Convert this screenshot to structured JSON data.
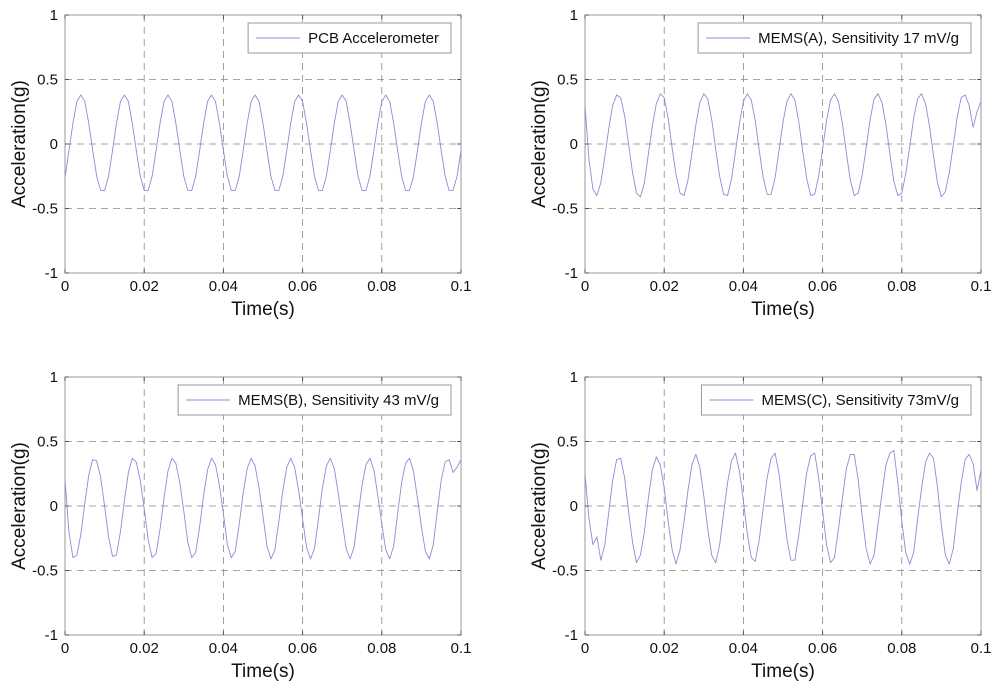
{
  "colors": {
    "series": "#8c8cd8",
    "frame": "#999999",
    "grid": "#888888"
  },
  "chart_data": [
    {
      "type": "line",
      "xlabel": "Time(s)",
      "ylabel": "Acceleration(g)",
      "xlim": [
        0,
        0.1
      ],
      "ylim": [
        -1,
        1
      ],
      "xticks": [
        "0",
        "0.02",
        "0.04",
        "0.06",
        "0.08",
        "0.1"
      ],
      "yticks": [
        "-1",
        "-0.5",
        "0",
        "0.5",
        "1"
      ],
      "grid": true,
      "legend_position": "top-right",
      "series": [
        {
          "name": "PCB Accelerometer",
          "frequency_hz": 100,
          "amplitude_g": 0.38,
          "x": [
            0,
            0.001,
            0.002,
            0.003,
            0.004,
            0.005,
            0.006,
            0.007,
            0.008,
            0.009,
            0.01,
            0.011,
            0.012,
            0.013,
            0.014,
            0.015,
            0.016,
            0.017,
            0.018,
            0.019,
            0.02,
            0.021,
            0.022,
            0.023,
            0.024,
            0.025,
            0.026,
            0.027,
            0.028,
            0.029,
            0.03,
            0.031,
            0.032,
            0.033,
            0.034,
            0.035,
            0.036,
            0.037,
            0.038,
            0.039,
            0.04,
            0.041,
            0.042,
            0.043,
            0.044,
            0.045,
            0.046,
            0.047,
            0.048,
            0.049,
            0.05,
            0.051,
            0.052,
            0.053,
            0.054,
            0.055,
            0.056,
            0.057,
            0.058,
            0.059,
            0.06,
            0.061,
            0.062,
            0.063,
            0.064,
            0.065,
            0.066,
            0.067,
            0.068,
            0.069,
            0.07,
            0.071,
            0.072,
            0.073,
            0.074,
            0.075,
            0.076,
            0.077,
            0.078,
            0.079,
            0.08,
            0.081,
            0.082,
            0.083,
            0.084,
            0.085,
            0.086,
            0.087,
            0.088,
            0.089,
            0.09,
            0.091,
            0.092,
            0.093,
            0.094,
            0.095,
            0.096,
            0.097,
            0.098,
            0.099,
            0.1
          ],
          "y": [
            -0.26,
            -0.05,
            0.16,
            0.33,
            0.38,
            0.33,
            0.16,
            -0.05,
            -0.25,
            -0.36,
            -0.36,
            -0.25,
            -0.05,
            0.16,
            0.33,
            0.38,
            0.33,
            0.16,
            -0.05,
            -0.25,
            -0.36,
            -0.36,
            -0.25,
            -0.05,
            0.16,
            0.33,
            0.38,
            0.33,
            0.16,
            -0.05,
            -0.25,
            -0.36,
            -0.36,
            -0.25,
            -0.05,
            0.16,
            0.33,
            0.38,
            0.33,
            0.16,
            -0.05,
            -0.25,
            -0.36,
            -0.36,
            -0.25,
            -0.05,
            0.16,
            0.33,
            0.38,
            0.33,
            0.16,
            -0.05,
            -0.25,
            -0.36,
            -0.36,
            -0.25,
            -0.05,
            0.16,
            0.33,
            0.38,
            0.33,
            0.16,
            -0.05,
            -0.25,
            -0.36,
            -0.36,
            -0.25,
            -0.05,
            0.16,
            0.33,
            0.38,
            0.33,
            0.16,
            -0.05,
            -0.25,
            -0.36,
            -0.36,
            -0.25,
            -0.05,
            0.16,
            0.33,
            0.38,
            0.33,
            0.16,
            -0.05,
            -0.25,
            -0.36,
            -0.36,
            -0.25,
            -0.05,
            0.16,
            0.33,
            0.38,
            0.33,
            0.16,
            -0.05,
            -0.25,
            -0.36,
            -0.36,
            -0.25,
            -0.05
          ]
        }
      ]
    },
    {
      "type": "line",
      "xlabel": "Time(s)",
      "ylabel": "Acceleration(g)",
      "xlim": [
        0,
        0.1
      ],
      "ylim": [
        -1,
        1
      ],
      "xticks": [
        "0",
        "0.02",
        "0.04",
        "0.06",
        "0.08",
        "0.1"
      ],
      "yticks": [
        "-1",
        "-0.5",
        "0",
        "0.5",
        "1"
      ],
      "grid": true,
      "legend_position": "top-right",
      "series": [
        {
          "name": "MEMS(A), Sensitivity 17 mV/g",
          "frequency_hz": 100,
          "amplitude_g": 0.4,
          "x": [
            0,
            0.001,
            0.002,
            0.003,
            0.004,
            0.005,
            0.006,
            0.007,
            0.008,
            0.009,
            0.01,
            0.011,
            0.012,
            0.013,
            0.014,
            0.015,
            0.016,
            0.017,
            0.018,
            0.019,
            0.02,
            0.021,
            0.022,
            0.023,
            0.024,
            0.025,
            0.026,
            0.027,
            0.028,
            0.029,
            0.03,
            0.031,
            0.032,
            0.033,
            0.034,
            0.035,
            0.036,
            0.037,
            0.038,
            0.039,
            0.04,
            0.041,
            0.042,
            0.043,
            0.044,
            0.045,
            0.046,
            0.047,
            0.048,
            0.049,
            0.05,
            0.051,
            0.052,
            0.053,
            0.054,
            0.055,
            0.056,
            0.057,
            0.058,
            0.059,
            0.06,
            0.061,
            0.062,
            0.063,
            0.064,
            0.065,
            0.066,
            0.067,
            0.068,
            0.069,
            0.07,
            0.071,
            0.072,
            0.073,
            0.074,
            0.075,
            0.076,
            0.077,
            0.078,
            0.079,
            0.08,
            0.081,
            0.082,
            0.083,
            0.084,
            0.085,
            0.086,
            0.087,
            0.088,
            0.089,
            0.09,
            0.091,
            0.092,
            0.093,
            0.094,
            0.095,
            0.096,
            0.097,
            0.098,
            0.099,
            0.1
          ],
          "y": [
            0.3,
            -0.12,
            -0.35,
            -0.4,
            -0.3,
            -0.1,
            0.12,
            0.3,
            0.38,
            0.36,
            0.22,
            0.0,
            -0.22,
            -0.38,
            -0.41,
            -0.3,
            -0.08,
            0.14,
            0.31,
            0.39,
            0.36,
            0.2,
            -0.03,
            -0.24,
            -0.38,
            -0.4,
            -0.28,
            -0.07,
            0.15,
            0.32,
            0.39,
            0.35,
            0.19,
            -0.04,
            -0.25,
            -0.39,
            -0.4,
            -0.27,
            -0.06,
            0.16,
            0.33,
            0.39,
            0.34,
            0.18,
            -0.05,
            -0.26,
            -0.39,
            -0.39,
            -0.26,
            -0.05,
            0.17,
            0.33,
            0.39,
            0.34,
            0.17,
            -0.06,
            -0.27,
            -0.4,
            -0.39,
            -0.25,
            -0.04,
            0.18,
            0.34,
            0.39,
            0.33,
            0.16,
            -0.07,
            -0.28,
            -0.4,
            -0.38,
            -0.24,
            -0.03,
            0.19,
            0.35,
            0.39,
            0.32,
            0.15,
            -0.08,
            -0.29,
            -0.4,
            -0.38,
            -0.23,
            -0.02,
            0.2,
            0.35,
            0.39,
            0.31,
            0.14,
            -0.09,
            -0.3,
            -0.41,
            -0.37,
            -0.22,
            -0.01,
            0.21,
            0.36,
            0.38,
            0.3,
            0.13,
            0.25,
            0.33
          ]
        }
      ]
    },
    {
      "type": "line",
      "xlabel": "Time(s)",
      "ylabel": "Acceleration(g)",
      "xlim": [
        0,
        0.1
      ],
      "ylim": [
        -1,
        1
      ],
      "xticks": [
        "0",
        "0.02",
        "0.04",
        "0.06",
        "0.08",
        "0.1"
      ],
      "yticks": [
        "-1",
        "-0.5",
        "0",
        "0.5",
        "1"
      ],
      "grid": true,
      "legend_position": "top-right",
      "series": [
        {
          "name": "MEMS(B), Sensitivity 43 mV/g",
          "frequency_hz": 100,
          "amplitude_g": 0.38,
          "x": [
            0,
            0.001,
            0.002,
            0.003,
            0.004,
            0.005,
            0.006,
            0.007,
            0.008,
            0.009,
            0.01,
            0.011,
            0.012,
            0.013,
            0.014,
            0.015,
            0.016,
            0.017,
            0.018,
            0.019,
            0.02,
            0.021,
            0.022,
            0.023,
            0.024,
            0.025,
            0.026,
            0.027,
            0.028,
            0.029,
            0.03,
            0.031,
            0.032,
            0.033,
            0.034,
            0.035,
            0.036,
            0.037,
            0.038,
            0.039,
            0.04,
            0.041,
            0.042,
            0.043,
            0.044,
            0.045,
            0.046,
            0.047,
            0.048,
            0.049,
            0.05,
            0.051,
            0.052,
            0.053,
            0.054,
            0.055,
            0.056,
            0.057,
            0.058,
            0.059,
            0.06,
            0.061,
            0.062,
            0.063,
            0.064,
            0.065,
            0.066,
            0.067,
            0.068,
            0.069,
            0.07,
            0.071,
            0.072,
            0.073,
            0.074,
            0.075,
            0.076,
            0.077,
            0.078,
            0.079,
            0.08,
            0.081,
            0.082,
            0.083,
            0.084,
            0.085,
            0.086,
            0.087,
            0.088,
            0.089,
            0.09,
            0.091,
            0.092,
            0.093,
            0.094,
            0.095,
            0.096,
            0.097,
            0.098,
            0.099,
            0.1
          ],
          "y": [
            0.2,
            -0.2,
            -0.4,
            -0.38,
            -0.22,
            0.02,
            0.24,
            0.36,
            0.35,
            0.22,
            0.0,
            -0.24,
            -0.39,
            -0.38,
            -0.2,
            0.04,
            0.26,
            0.37,
            0.34,
            0.2,
            -0.02,
            -0.26,
            -0.4,
            -0.37,
            -0.18,
            0.06,
            0.27,
            0.37,
            0.33,
            0.18,
            -0.04,
            -0.28,
            -0.4,
            -0.36,
            -0.16,
            0.08,
            0.28,
            0.37,
            0.32,
            0.16,
            -0.06,
            -0.3,
            -0.4,
            -0.35,
            -0.14,
            0.1,
            0.29,
            0.37,
            0.31,
            0.14,
            -0.08,
            -0.31,
            -0.41,
            -0.34,
            -0.12,
            0.12,
            0.3,
            0.37,
            0.3,
            0.12,
            -0.1,
            -0.32,
            -0.41,
            -0.33,
            -0.1,
            0.14,
            0.31,
            0.37,
            0.29,
            0.1,
            -0.12,
            -0.33,
            -0.41,
            -0.32,
            -0.08,
            0.16,
            0.32,
            0.37,
            0.28,
            0.08,
            -0.14,
            -0.34,
            -0.41,
            -0.31,
            -0.06,
            0.18,
            0.33,
            0.37,
            0.27,
            0.06,
            -0.16,
            -0.35,
            -0.41,
            -0.3,
            -0.04,
            0.2,
            0.34,
            0.36,
            0.26,
            0.3,
            0.36
          ]
        }
      ]
    },
    {
      "type": "line",
      "xlabel": "Time(s)",
      "ylabel": "Acceleration(g)",
      "xlim": [
        0,
        0.1
      ],
      "ylim": [
        -1,
        1
      ],
      "xticks": [
        "0",
        "0.02",
        "0.04",
        "0.06",
        "0.08",
        "0.1"
      ],
      "yticks": [
        "-1",
        "-0.5",
        "0",
        "0.5",
        "1"
      ],
      "grid": true,
      "legend_position": "top-right",
      "series": [
        {
          "name": "MEMS(C), Sensitivity 73mV/g",
          "frequency_hz": 100,
          "amplitude_g": 0.42,
          "x": [
            0,
            0.001,
            0.002,
            0.003,
            0.004,
            0.005,
            0.006,
            0.007,
            0.008,
            0.009,
            0.01,
            0.011,
            0.012,
            0.013,
            0.014,
            0.015,
            0.016,
            0.017,
            0.018,
            0.019,
            0.02,
            0.021,
            0.022,
            0.023,
            0.024,
            0.025,
            0.026,
            0.027,
            0.028,
            0.029,
            0.03,
            0.031,
            0.032,
            0.033,
            0.034,
            0.035,
            0.036,
            0.037,
            0.038,
            0.039,
            0.04,
            0.041,
            0.042,
            0.043,
            0.044,
            0.045,
            0.046,
            0.047,
            0.048,
            0.049,
            0.05,
            0.051,
            0.052,
            0.053,
            0.054,
            0.055,
            0.056,
            0.057,
            0.058,
            0.059,
            0.06,
            0.061,
            0.062,
            0.063,
            0.064,
            0.065,
            0.066,
            0.067,
            0.068,
            0.069,
            0.07,
            0.071,
            0.072,
            0.073,
            0.074,
            0.075,
            0.076,
            0.077,
            0.078,
            0.079,
            0.08,
            0.081,
            0.082,
            0.083,
            0.084,
            0.085,
            0.086,
            0.087,
            0.088,
            0.089,
            0.09,
            0.091,
            0.092,
            0.093,
            0.094,
            0.095,
            0.096,
            0.097,
            0.098,
            0.099,
            0.1
          ],
          "y": [
            0.25,
            -0.1,
            -0.3,
            -0.24,
            -0.42,
            -0.3,
            -0.05,
            0.2,
            0.36,
            0.37,
            0.22,
            -0.04,
            -0.28,
            -0.44,
            -0.38,
            -0.2,
            0.06,
            0.28,
            0.38,
            0.32,
            0.14,
            -0.12,
            -0.34,
            -0.45,
            -0.34,
            -0.12,
            0.12,
            0.32,
            0.4,
            0.3,
            0.08,
            -0.18,
            -0.38,
            -0.44,
            -0.3,
            -0.06,
            0.18,
            0.35,
            0.41,
            0.27,
            0.04,
            -0.22,
            -0.4,
            -0.43,
            -0.26,
            -0.02,
            0.22,
            0.37,
            0.41,
            0.25,
            0.0,
            -0.26,
            -0.42,
            -0.42,
            -0.22,
            0.02,
            0.26,
            0.39,
            0.41,
            0.22,
            -0.04,
            -0.3,
            -0.44,
            -0.4,
            -0.18,
            0.06,
            0.29,
            0.4,
            0.4,
            0.2,
            -0.08,
            -0.33,
            -0.45,
            -0.38,
            -0.14,
            0.1,
            0.32,
            0.41,
            0.43,
            0.18,
            -0.12,
            -0.36,
            -0.45,
            -0.36,
            -0.1,
            0.14,
            0.34,
            0.41,
            0.37,
            0.15,
            -0.15,
            -0.38,
            -0.45,
            -0.33,
            -0.06,
            0.18,
            0.36,
            0.4,
            0.33,
            0.12,
            0.28
          ]
        }
      ]
    }
  ]
}
